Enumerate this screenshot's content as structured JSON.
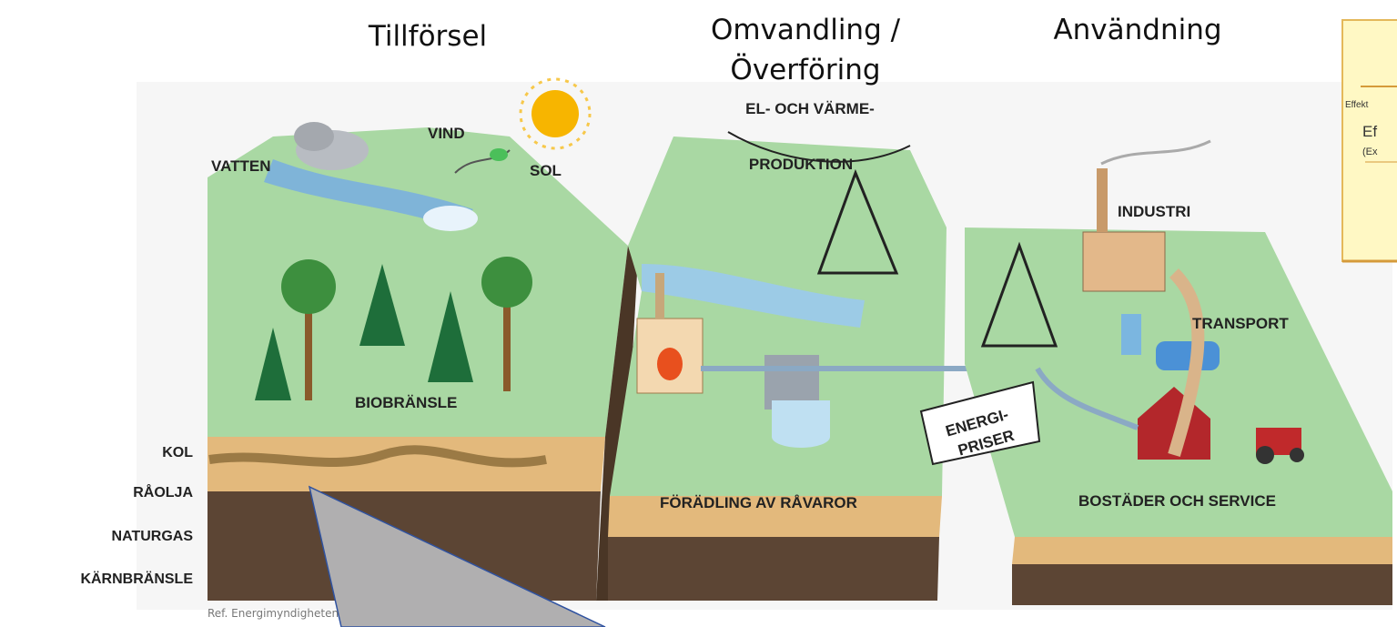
{
  "header": {
    "supply": "Tillförsel",
    "conversion": [
      "Omvandling /",
      "Överföring"
    ],
    "usage": "Användning"
  },
  "labels": {
    "water": "VATTEN",
    "wind": "VIND",
    "sun": "SOL",
    "power": [
      "EL- OCH VÄRME-",
      "PRODUKTION"
    ],
    "industry": "INDUSTRI",
    "transport": "TRANSPORT",
    "biofuel": "BIOBRÄNSLE",
    "prices": [
      "ENERGI-",
      "PRISER"
    ],
    "refining": "FÖRÄDLING AV RÅVAROR",
    "housing": "BOSTÄDER OCH SERVICE"
  },
  "strata": [
    "KOL",
    "RÅOLJA",
    "NATURGAS",
    "KÄRNBRÄNSLE"
  ],
  "reference": "Ref. Energimyndigheten",
  "side_box": {
    "line1": "Effekt",
    "line2": "Ef",
    "line3": "(Ex"
  }
}
